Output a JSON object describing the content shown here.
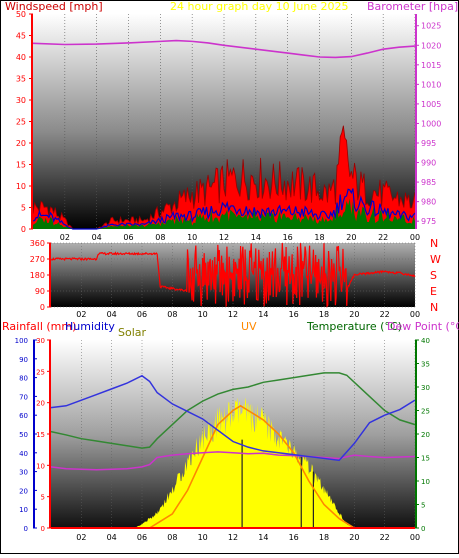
{
  "header": {
    "windspeed_label": "Windspeed [mph]",
    "graph_title": "24 hour graph day   10 June 2025",
    "barometer_label": "Barometer [hpa]"
  },
  "bottom_header": {
    "rainfall_label": "Rainfall (mm)",
    "humidity_label": "Humidity",
    "solar_label": "Solar",
    "uv_label": "UV",
    "temperature_label": "Temperature (°C)",
    "dewpoint_label": "Dew Point (°C)"
  },
  "colors": {
    "red": "#ff0000",
    "barometer": "#cc33cc",
    "blue": "#0000cc",
    "gust_dark": "#990000",
    "wind_green": "#007700",
    "humidity": "#3333dd",
    "temperature": "#338833",
    "dewpoint": "#cc33cc",
    "solar": "#ffff00",
    "uv": "#ff8800",
    "solar_text": "#808000"
  },
  "chart_data": [
    {
      "type": "line",
      "x_ticks": [
        "02",
        "04",
        "06",
        "08",
        "10",
        "12",
        "14",
        "16",
        "18",
        "20",
        "22",
        "00"
      ],
      "y_left_ticks": [
        "0",
        "5",
        "10",
        "15",
        "20",
        "25",
        "30",
        "35",
        "40",
        "45",
        "50"
      ],
      "y_right_ticks": [
        "975",
        "980",
        "985",
        "990",
        "995",
        "1000",
        "1005",
        "1010",
        "1015",
        "1020",
        "1025"
      ],
      "ylim_left": [
        0,
        50
      ],
      "ylim_right": [
        973,
        1028
      ],
      "series": [
        {
          "name": "Barometer [hpa]",
          "axis": "right",
          "x": [
            0,
            2,
            4,
            6,
            8,
            9,
            10,
            11,
            12,
            14,
            16,
            17,
            18,
            19,
            20,
            21,
            22,
            23,
            24
          ],
          "y": [
            1020.5,
            1020.2,
            1020.3,
            1020.6,
            1021,
            1021.2,
            1021,
            1020.6,
            1020,
            1019,
            1018,
            1017.5,
            1017,
            1016.9,
            1017.1,
            1018,
            1019,
            1019.5,
            1019.8
          ]
        },
        {
          "name": "Windspeed [mph]",
          "axis": "left",
          "x": [
            0,
            1,
            2,
            2.5,
            3,
            4,
            5,
            6,
            7,
            8,
            9,
            10,
            11,
            12,
            13,
            14,
            15,
            16,
            17,
            18,
            18.5,
            19,
            19.5,
            20,
            21,
            22,
            23,
            24
          ],
          "y": [
            3,
            3,
            1,
            0,
            0,
            0,
            1,
            1,
            1,
            2,
            3,
            3,
            4,
            5,
            5,
            4,
            4,
            4,
            4,
            3,
            3,
            4,
            8,
            7,
            5,
            4,
            3,
            3
          ]
        },
        {
          "name": "Gust",
          "axis": "left",
          "x": [
            0,
            1,
            2,
            2.5,
            3,
            4,
            5,
            6,
            7,
            8,
            9,
            10,
            11,
            12,
            13,
            14,
            15,
            16,
            17,
            18,
            18.5,
            19,
            19.5,
            20,
            20.5,
            21,
            22,
            23,
            24
          ],
          "y": [
            5,
            5,
            2,
            0,
            0,
            0,
            2,
            2,
            2,
            4,
            6,
            8,
            9,
            11,
            12,
            12,
            11,
            11,
            10,
            9,
            8,
            10,
            19,
            12,
            10,
            9,
            8,
            7,
            6
          ]
        }
      ]
    },
    {
      "type": "scatter",
      "x_ticks": [
        "02",
        "04",
        "06",
        "08",
        "10",
        "12",
        "14",
        "16",
        "18",
        "20",
        "22",
        "00"
      ],
      "y_ticks": [
        "0",
        "90",
        "180",
        "270",
        "360"
      ],
      "compass_labels": [
        "N",
        "W",
        "S",
        "E",
        "N"
      ],
      "ylim": [
        0,
        360
      ],
      "series": [
        {
          "name": "Wind direction",
          "x": [
            0,
            3,
            3.1,
            5,
            7,
            7.2,
            9,
            9.5,
            10,
            10.5,
            11,
            11.5,
            12,
            12.5,
            13,
            13.5,
            14,
            14.5,
            15,
            15.5,
            16,
            16.5,
            17,
            17.5,
            18,
            18.5,
            19,
            19.5,
            20,
            21,
            22,
            23,
            24
          ],
          "y": [
            270,
            270,
            300,
            300,
            300,
            115,
            90,
            60,
            270,
            40,
            350,
            180,
            90,
            300,
            60,
            320,
            100,
            260,
            60,
            300,
            80,
            350,
            120,
            260,
            90,
            50,
            200,
            100,
            180,
            190,
            200,
            190,
            175
          ]
        }
      ]
    },
    {
      "type": "area",
      "x_ticks": [
        "02",
        "04",
        "06",
        "08",
        "10",
        "12",
        "14",
        "16",
        "18",
        "20",
        "22",
        "00"
      ],
      "y_rain_ticks": [
        "0",
        "10",
        "20",
        "30",
        "40",
        "50",
        "60",
        "70",
        "80",
        "90",
        "100"
      ],
      "y_humidity_ticks": [
        "0",
        "5",
        "10",
        "15",
        "20",
        "25",
        "30"
      ],
      "y_temp_ticks": [
        "0",
        "5",
        "10",
        "15",
        "20",
        "25",
        "30",
        "35",
        "40"
      ],
      "ylim_humidity": [
        0,
        100
      ],
      "ylim_temp": [
        0,
        40
      ],
      "series": [
        {
          "name": "Solar",
          "x": [
            0,
            5.5,
            6,
            7,
            8,
            9,
            10,
            11,
            12,
            12.5,
            13,
            14,
            15,
            16,
            17,
            18,
            19,
            19.5,
            20,
            24
          ],
          "y": [
            0,
            0,
            2,
            8,
            20,
            35,
            48,
            56,
            60,
            62,
            60,
            56,
            48,
            40,
            32,
            20,
            8,
            2,
            0,
            0
          ]
        },
        {
          "name": "Humidity",
          "x": [
            0,
            1,
            2,
            3,
            4,
            5,
            6,
            6.5,
            7,
            8,
            9,
            10,
            11,
            12,
            13,
            14,
            15,
            16,
            17,
            18,
            19,
            20,
            21,
            22,
            23,
            24
          ],
          "y": [
            64,
            65,
            68,
            71,
            74,
            77,
            81,
            78,
            72,
            66,
            62,
            58,
            52,
            46,
            43,
            41,
            40,
            39,
            38,
            37,
            36,
            45,
            56,
            60,
            63,
            68
          ]
        },
        {
          "name": "Temperature (°C)",
          "x": [
            0,
            1,
            2,
            3,
            4,
            5,
            6,
            6.5,
            7,
            8,
            9,
            10,
            11,
            12,
            13,
            14,
            15,
            16,
            17,
            18,
            19,
            19.5,
            20,
            21,
            22,
            23,
            24
          ],
          "y": [
            20.5,
            19.8,
            19,
            18.5,
            18,
            17.5,
            17,
            17.2,
            19,
            22,
            25,
            27,
            28.5,
            29.5,
            30,
            31,
            31.5,
            32,
            32.5,
            33,
            33,
            32.5,
            31,
            28,
            25,
            23,
            22
          ]
        },
        {
          "name": "Dew Point (°C)",
          "x": [
            0,
            1,
            2,
            3,
            4,
            5,
            6,
            6.5,
            7,
            8,
            9,
            10,
            11,
            12,
            13,
            14,
            15,
            16,
            17,
            18,
            19,
            20,
            21,
            22,
            23,
            24
          ],
          "y": [
            13,
            12.6,
            12.5,
            12.4,
            12.5,
            12.6,
            13,
            13.5,
            15,
            15.5,
            15.8,
            16,
            16.2,
            16,
            15.8,
            15.9,
            15.5,
            15.4,
            15.2,
            15,
            14.8,
            15.5,
            15.2,
            15,
            15.1,
            15.2
          ]
        },
        {
          "name": "UV",
          "x": [
            0,
            6.5,
            7,
            8,
            9,
            10,
            11,
            12,
            12.5,
            13,
            14,
            15,
            16,
            17,
            18,
            19,
            20,
            24
          ],
          "y": [
            0,
            0,
            1,
            3,
            8,
            15,
            22,
            25,
            26,
            25,
            23,
            20,
            16,
            10,
            5,
            2,
            0,
            0
          ]
        },
        {
          "name": "Rainfall (mm)",
          "x": [
            0,
            24
          ],
          "y": [
            0,
            0
          ]
        }
      ]
    }
  ]
}
